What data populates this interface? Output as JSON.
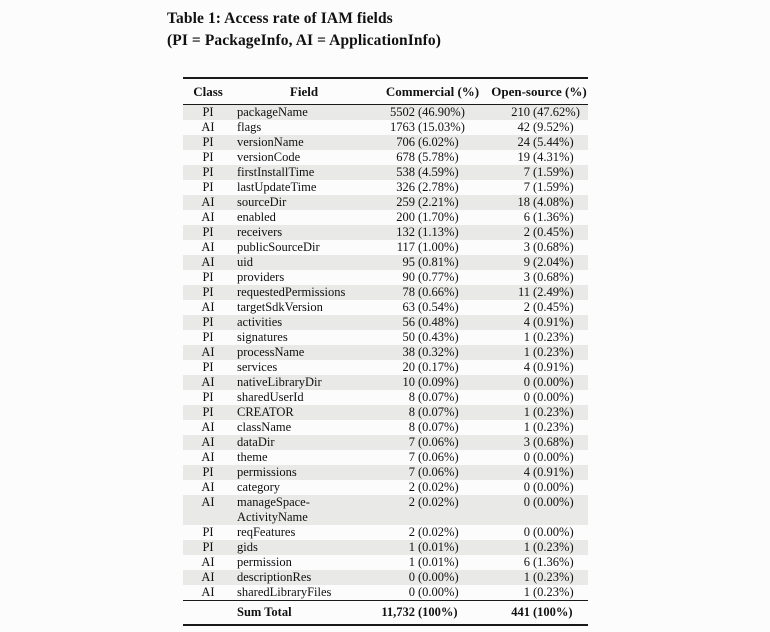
{
  "caption": {
    "line1": "Table 1: Access rate of IAM fields",
    "line2": "(PI = PackageInfo, AI = ApplicationInfo)"
  },
  "table": {
    "headers": {
      "class": "Class",
      "field": "Field",
      "commercial": "Commercial (%)",
      "open_source": "Open-source (%)"
    },
    "rows": [
      {
        "class": "PI",
        "field": "packageName",
        "commercial": [
          "5502",
          "(46.90%)"
        ],
        "open": [
          "210",
          "(47.62%)"
        ]
      },
      {
        "class": "AI",
        "field": "flags",
        "commercial": [
          "1763",
          "(15.03%)"
        ],
        "open": [
          "42",
          "(9.52%)"
        ]
      },
      {
        "class": "PI",
        "field": "versionName",
        "commercial": [
          "706",
          "(6.02%)"
        ],
        "open": [
          "24",
          "(5.44%)"
        ]
      },
      {
        "class": "PI",
        "field": "versionCode",
        "commercial": [
          "678",
          "(5.78%)"
        ],
        "open": [
          "19",
          "(4.31%)"
        ]
      },
      {
        "class": "PI",
        "field": "firstInstallTime",
        "commercial": [
          "538",
          "(4.59%)"
        ],
        "open": [
          "7",
          "(1.59%)"
        ]
      },
      {
        "class": "PI",
        "field": "lastUpdateTime",
        "commercial": [
          "326",
          "(2.78%)"
        ],
        "open": [
          "7",
          "(1.59%)"
        ]
      },
      {
        "class": "AI",
        "field": "sourceDir",
        "commercial": [
          "259",
          "(2.21%)"
        ],
        "open": [
          "18",
          "(4.08%)"
        ]
      },
      {
        "class": "AI",
        "field": "enabled",
        "commercial": [
          "200",
          "(1.70%)"
        ],
        "open": [
          "6",
          "(1.36%)"
        ]
      },
      {
        "class": "PI",
        "field": "receivers",
        "commercial": [
          "132",
          "(1.13%)"
        ],
        "open": [
          "2",
          "(0.45%)"
        ]
      },
      {
        "class": "AI",
        "field": "publicSourceDir",
        "commercial": [
          "117",
          "(1.00%)"
        ],
        "open": [
          "3",
          "(0.68%)"
        ]
      },
      {
        "class": "AI",
        "field": "uid",
        "commercial": [
          "95",
          "(0.81%)"
        ],
        "open": [
          "9",
          "(2.04%)"
        ]
      },
      {
        "class": "PI",
        "field": "providers",
        "commercial": [
          "90",
          "(0.77%)"
        ],
        "open": [
          "3",
          "(0.68%)"
        ]
      },
      {
        "class": "PI",
        "field": "requestedPermissions",
        "commercial": [
          "78",
          "(0.66%)"
        ],
        "open": [
          "11",
          "(2.49%)"
        ]
      },
      {
        "class": "AI",
        "field": "targetSdkVersion",
        "commercial": [
          "63",
          "(0.54%)"
        ],
        "open": [
          "2",
          "(0.45%)"
        ]
      },
      {
        "class": "PI",
        "field": "activities",
        "commercial": [
          "56",
          "(0.48%)"
        ],
        "open": [
          "4",
          "(0.91%)"
        ]
      },
      {
        "class": "PI",
        "field": "signatures",
        "commercial": [
          "50",
          "(0.43%)"
        ],
        "open": [
          "1",
          "(0.23%)"
        ]
      },
      {
        "class": "AI",
        "field": "processName",
        "commercial": [
          "38",
          "(0.32%)"
        ],
        "open": [
          "1",
          "(0.23%)"
        ]
      },
      {
        "class": "PI",
        "field": "services",
        "commercial": [
          "20",
          "(0.17%)"
        ],
        "open": [
          "4",
          "(0.91%)"
        ]
      },
      {
        "class": "AI",
        "field": "nativeLibraryDir",
        "commercial": [
          "10",
          "(0.09%)"
        ],
        "open": [
          "0",
          "(0.00%)"
        ]
      },
      {
        "class": "PI",
        "field": "sharedUserId",
        "commercial": [
          "8",
          "(0.07%)"
        ],
        "open": [
          "0",
          "(0.00%)"
        ]
      },
      {
        "class": "PI",
        "field": "CREATOR",
        "commercial": [
          "8",
          "(0.07%)"
        ],
        "open": [
          "1",
          "(0.23%)"
        ]
      },
      {
        "class": "AI",
        "field": "className",
        "commercial": [
          "8",
          "(0.07%)"
        ],
        "open": [
          "1",
          "(0.23%)"
        ]
      },
      {
        "class": "AI",
        "field": "dataDir",
        "commercial": [
          "7",
          "(0.06%)"
        ],
        "open": [
          "3",
          "(0.68%)"
        ]
      },
      {
        "class": "AI",
        "field": "theme",
        "commercial": [
          "7",
          "(0.06%)"
        ],
        "open": [
          "0",
          "(0.00%)"
        ]
      },
      {
        "class": "PI",
        "field": "permissions",
        "commercial": [
          "7",
          "(0.06%)"
        ],
        "open": [
          "4",
          "(0.91%)"
        ]
      },
      {
        "class": "AI",
        "field": "category",
        "commercial": [
          "2",
          "(0.02%)"
        ],
        "open": [
          "0",
          "(0.00%)"
        ]
      },
      {
        "class": "AI",
        "field": "manageSpace-",
        "field2": "ActivityName",
        "commercial": [
          "2",
          "(0.02%)"
        ],
        "open": [
          "0",
          "(0.00%)"
        ]
      },
      {
        "class": "PI",
        "field": "reqFeatures",
        "commercial": [
          "2",
          "(0.02%)"
        ],
        "open": [
          "0",
          "(0.00%)"
        ]
      },
      {
        "class": "PI",
        "field": "gids",
        "commercial": [
          "1",
          "(0.01%)"
        ],
        "open": [
          "1",
          "(0.23%)"
        ]
      },
      {
        "class": "AI",
        "field": "permission",
        "commercial": [
          "1",
          "(0.01%)"
        ],
        "open": [
          "6",
          "(1.36%)"
        ]
      },
      {
        "class": "AI",
        "field": "descriptionRes",
        "commercial": [
          "0",
          "(0.00%)"
        ],
        "open": [
          "1",
          "(0.23%)"
        ]
      },
      {
        "class": "AI",
        "field": "sharedLibraryFiles",
        "commercial": [
          "0",
          "(0.00%)"
        ],
        "open": [
          "1",
          "(0.23%)"
        ]
      }
    ],
    "sum": {
      "label": "Sum Total",
      "commercial": [
        "11,732",
        "(100%)"
      ],
      "open": [
        "441",
        "(100%)"
      ]
    }
  },
  "colors": {
    "page_background": "#fcfcfc",
    "row_shade": "#e9e9e7",
    "rule": "#1a1a1a",
    "text": "#111111"
  }
}
